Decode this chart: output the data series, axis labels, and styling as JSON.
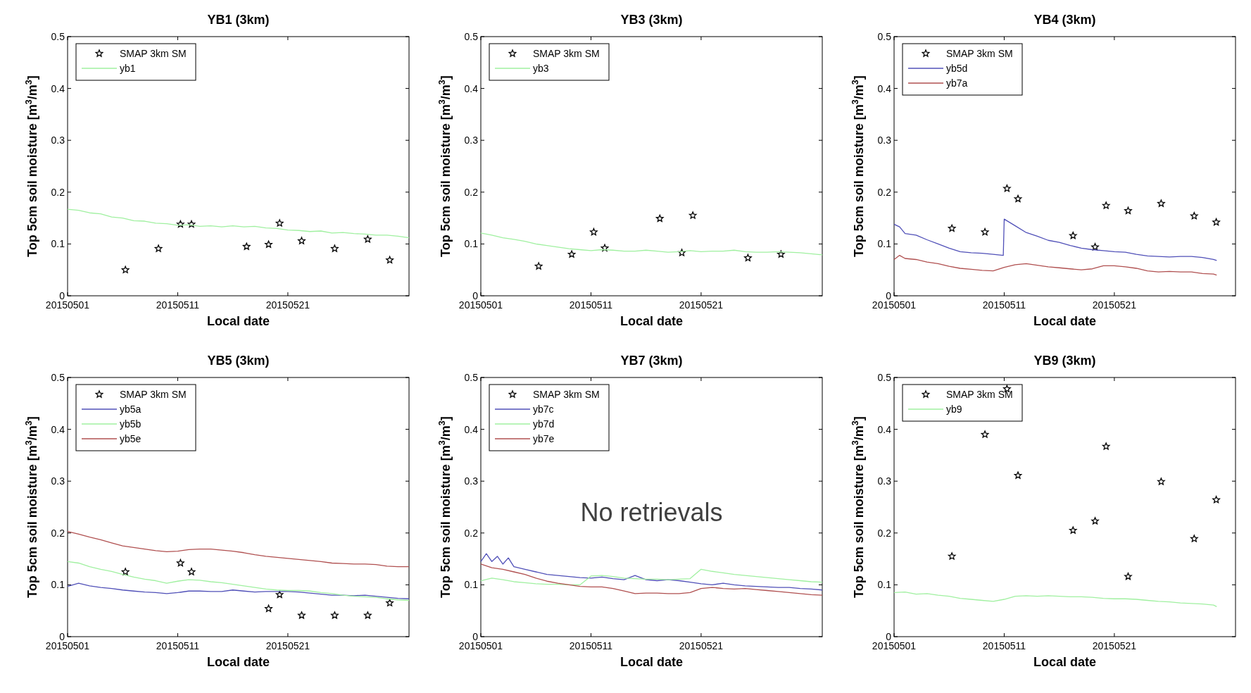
{
  "chart_data": [
    {
      "type": "line",
      "title": "YB1 (3km)",
      "xlabel": "Local date",
      "ylabel": "Top 5cm soil moisture [m$^{3}$/m$^{3}$]",
      "xlim": [
        "2015-05-01",
        "2015-06-01"
      ],
      "xticks": [
        {
          "value": "2015-05-01",
          "label": "20150501"
        },
        {
          "value": "2015-05-11",
          "label": "20150511"
        },
        {
          "value": "2015-05-21",
          "label": "20150521"
        }
      ],
      "ylim": [
        0,
        0.5
      ],
      "yticks": [
        0,
        0.1,
        0.2,
        0.3,
        0.4,
        0.5
      ],
      "legend": "top left",
      "series": [
        {
          "name": "SMAP 3km SM",
          "type": "scatter",
          "marker": "star",
          "color": "#000000",
          "x": [
            "2015-05-06T06:00",
            "2015-05-09T06:00",
            "2015-05-11T06:00",
            "2015-05-12T06:00",
            "2015-05-17T06:00",
            "2015-05-19T06:00",
            "2015-05-20T06:00",
            "2015-05-22T06:00",
            "2015-05-25T06:00",
            "2015-05-28T06:00",
            "2015-05-30T06:00"
          ],
          "values": [
            0.05,
            0.091,
            0.138,
            0.138,
            0.095,
            0.099,
            0.14,
            0.106,
            0.091,
            0.109,
            0.069
          ]
        },
        {
          "name": "yb1",
          "color": "#a0f0a0",
          "x": [
            "2015-05-01",
            "2015-05-02",
            "2015-05-03",
            "2015-05-04",
            "2015-05-05",
            "2015-05-06",
            "2015-05-07",
            "2015-05-08",
            "2015-05-09",
            "2015-05-10",
            "2015-05-11",
            "2015-05-12",
            "2015-05-13",
            "2015-05-14",
            "2015-05-15",
            "2015-05-16",
            "2015-05-17",
            "2015-05-18",
            "2015-05-19",
            "2015-05-20",
            "2015-05-21",
            "2015-05-22",
            "2015-05-23",
            "2015-05-24",
            "2015-05-25",
            "2015-05-26",
            "2015-05-27",
            "2015-05-28",
            "2015-05-29",
            "2015-05-30",
            "2015-05-31",
            "2015-06-01"
          ],
          "values": [
            0.167,
            0.165,
            0.16,
            0.158,
            0.152,
            0.15,
            0.145,
            0.144,
            0.14,
            0.139,
            0.136,
            0.137,
            0.134,
            0.135,
            0.133,
            0.135,
            0.133,
            0.134,
            0.131,
            0.13,
            0.127,
            0.126,
            0.124,
            0.125,
            0.121,
            0.122,
            0.12,
            0.119,
            0.117,
            0.117,
            0.115,
            0.112
          ]
        }
      ]
    },
    {
      "type": "line",
      "title": "YB3 (3km)",
      "xlabel": "Local date",
      "ylabel": "Top 5cm soil moisture [m$^{3}$/m$^{3}$]",
      "xlim": [
        "2015-05-01",
        "2015-06-01"
      ],
      "xticks": [
        {
          "value": "2015-05-01",
          "label": "20150501"
        },
        {
          "value": "2015-05-11",
          "label": "20150511"
        },
        {
          "value": "2015-05-21",
          "label": "20150521"
        }
      ],
      "ylim": [
        0,
        0.5
      ],
      "yticks": [
        0,
        0.1,
        0.2,
        0.3,
        0.4,
        0.5
      ],
      "legend": "top left",
      "series": [
        {
          "name": "SMAP 3km SM",
          "type": "scatter",
          "marker": "star",
          "color": "#000000",
          "x": [
            "2015-05-06T06:00",
            "2015-05-09T06:00",
            "2015-05-11T06:00",
            "2015-05-12T06:00",
            "2015-05-17T06:00",
            "2015-05-19T06:00",
            "2015-05-20T06:00",
            "2015-05-25T06:00",
            "2015-05-28T06:00"
          ],
          "values": [
            0.057,
            0.08,
            0.123,
            0.092,
            0.149,
            0.083,
            0.155,
            0.073,
            0.08
          ]
        },
        {
          "name": "yb3",
          "color": "#a0f0a0",
          "x": [
            "2015-05-01",
            "2015-05-02",
            "2015-05-03",
            "2015-05-04",
            "2015-05-05",
            "2015-05-06",
            "2015-05-07",
            "2015-05-08",
            "2015-05-09",
            "2015-05-10",
            "2015-05-11",
            "2015-05-12",
            "2015-05-13",
            "2015-05-14",
            "2015-05-15",
            "2015-05-16",
            "2015-05-17",
            "2015-05-18",
            "2015-05-19",
            "2015-05-20",
            "2015-05-21",
            "2015-05-22",
            "2015-05-23",
            "2015-05-24",
            "2015-05-25",
            "2015-05-26",
            "2015-05-27",
            "2015-05-28",
            "2015-05-29",
            "2015-05-30",
            "2015-05-31",
            "2015-06-01"
          ],
          "values": [
            0.121,
            0.117,
            0.112,
            0.109,
            0.105,
            0.1,
            0.097,
            0.094,
            0.091,
            0.089,
            0.087,
            0.089,
            0.088,
            0.086,
            0.086,
            0.088,
            0.086,
            0.084,
            0.085,
            0.087,
            0.085,
            0.086,
            0.086,
            0.088,
            0.085,
            0.084,
            0.084,
            0.085,
            0.084,
            0.083,
            0.081,
            0.079
          ]
        }
      ]
    },
    {
      "type": "line",
      "title": "YB4 (3km)",
      "xlabel": "Local date",
      "ylabel": "Top 5cm soil moisture [m$^{3}$/m$^{3}$]",
      "xlim": [
        "2015-05-01",
        "2015-06-01"
      ],
      "xticks": [
        {
          "value": "2015-05-01",
          "label": "20150501"
        },
        {
          "value": "2015-05-11",
          "label": "20150511"
        },
        {
          "value": "2015-05-21",
          "label": "20150521"
        }
      ],
      "ylim": [
        0,
        0.5
      ],
      "yticks": [
        0,
        0.1,
        0.2,
        0.3,
        0.4,
        0.5
      ],
      "legend": "top left",
      "series": [
        {
          "name": "SMAP 3km SM",
          "type": "scatter",
          "marker": "star",
          "color": "#000000",
          "x": [
            "2015-05-06T06:00",
            "2015-05-09T06:00",
            "2015-05-11T06:00",
            "2015-05-12T06:00",
            "2015-05-17T06:00",
            "2015-05-19T06:00",
            "2015-05-20T06:00",
            "2015-05-22T06:00",
            "2015-05-25T06:00",
            "2015-05-28T06:00",
            "2015-05-30T06:00"
          ],
          "values": [
            0.13,
            0.123,
            0.207,
            0.187,
            0.116,
            0.094,
            0.174,
            0.164,
            0.178,
            0.154,
            0.142
          ]
        },
        {
          "name": "yb5d",
          "color": "#5050b8",
          "x": [
            "2015-05-01",
            "2015-05-01T12:00",
            "2015-05-02",
            "2015-05-03",
            "2015-05-04",
            "2015-05-05",
            "2015-05-06",
            "2015-05-07",
            "2015-05-08",
            "2015-05-09",
            "2015-05-10",
            "2015-05-10T22:00",
            "2015-05-11",
            "2015-05-12",
            "2015-05-13",
            "2015-05-14",
            "2015-05-15",
            "2015-05-16",
            "2015-05-17",
            "2015-05-18",
            "2015-05-19",
            "2015-05-20",
            "2015-05-21",
            "2015-05-22",
            "2015-05-23",
            "2015-05-24",
            "2015-05-25",
            "2015-05-26",
            "2015-05-27",
            "2015-05-28",
            "2015-05-29",
            "2015-05-30",
            "2015-05-30T07:00"
          ],
          "values": [
            0.138,
            0.133,
            0.12,
            0.117,
            0.108,
            0.1,
            0.092,
            0.085,
            0.083,
            0.082,
            0.08,
            0.078,
            0.148,
            0.135,
            0.122,
            0.115,
            0.107,
            0.103,
            0.097,
            0.092,
            0.089,
            0.087,
            0.085,
            0.084,
            0.08,
            0.077,
            0.076,
            0.075,
            0.076,
            0.076,
            0.074,
            0.07,
            0.068
          ]
        },
        {
          "name": "yb7a",
          "color": "#b05050",
          "x": [
            "2015-05-01",
            "2015-05-01T12:00",
            "2015-05-02",
            "2015-05-03",
            "2015-05-04",
            "2015-05-05",
            "2015-05-06",
            "2015-05-07",
            "2015-05-08",
            "2015-05-09",
            "2015-05-10",
            "2015-05-11",
            "2015-05-12",
            "2015-05-13",
            "2015-05-14",
            "2015-05-15",
            "2015-05-16",
            "2015-05-17",
            "2015-05-18",
            "2015-05-19",
            "2015-05-20",
            "2015-05-21",
            "2015-05-22",
            "2015-05-23",
            "2015-05-24",
            "2015-05-25",
            "2015-05-26",
            "2015-05-27",
            "2015-05-28",
            "2015-05-29",
            "2015-05-30",
            "2015-05-30T07:00"
          ],
          "values": [
            0.07,
            0.078,
            0.072,
            0.07,
            0.065,
            0.062,
            0.057,
            0.053,
            0.051,
            0.049,
            0.048,
            0.055,
            0.06,
            0.062,
            0.059,
            0.056,
            0.054,
            0.052,
            0.05,
            0.052,
            0.058,
            0.058,
            0.056,
            0.053,
            0.048,
            0.046,
            0.047,
            0.046,
            0.046,
            0.043,
            0.042,
            0.04
          ]
        }
      ]
    },
    {
      "type": "line",
      "title": "YB5 (3km)",
      "xlabel": "Local date",
      "ylabel": "Top 5cm soil moisture [m$^{3}$/m$^{3}$]",
      "xlim": [
        "2015-05-01",
        "2015-06-01"
      ],
      "xticks": [
        {
          "value": "2015-05-01",
          "label": "20150501"
        },
        {
          "value": "2015-05-11",
          "label": "20150511"
        },
        {
          "value": "2015-05-21",
          "label": "20150521"
        }
      ],
      "ylim": [
        0,
        0.5
      ],
      "yticks": [
        0,
        0.1,
        0.2,
        0.3,
        0.4,
        0.5
      ],
      "legend": "top left",
      "series": [
        {
          "name": "SMAP 3km SM",
          "type": "scatter",
          "marker": "star",
          "color": "#000000",
          "x": [
            "2015-05-06T06:00",
            "2015-05-11T06:00",
            "2015-05-12T06:00",
            "2015-05-19T06:00",
            "2015-05-20T06:00",
            "2015-05-22T06:00",
            "2015-05-25T06:00",
            "2015-05-28T06:00",
            "2015-05-30T06:00"
          ],
          "values": [
            0.125,
            0.142,
            0.125,
            0.054,
            0.081,
            0.041,
            0.041,
            0.041,
            0.065
          ]
        },
        {
          "name": "yb5a",
          "color": "#5050b8",
          "x": [
            "2015-05-01",
            "2015-05-02",
            "2015-05-03",
            "2015-05-04",
            "2015-05-05",
            "2015-05-06",
            "2015-05-07",
            "2015-05-08",
            "2015-05-09",
            "2015-05-10",
            "2015-05-11",
            "2015-05-12",
            "2015-05-13",
            "2015-05-14",
            "2015-05-15",
            "2015-05-16",
            "2015-05-17",
            "2015-05-18",
            "2015-05-19",
            "2015-05-20",
            "2015-05-21",
            "2015-05-22",
            "2015-05-23",
            "2015-05-24",
            "2015-05-25",
            "2015-05-26",
            "2015-05-27",
            "2015-05-28",
            "2015-05-29",
            "2015-05-30",
            "2015-05-31",
            "2015-06-01"
          ],
          "values": [
            0.097,
            0.103,
            0.098,
            0.095,
            0.093,
            0.09,
            0.088,
            0.086,
            0.085,
            0.083,
            0.085,
            0.088,
            0.088,
            0.087,
            0.087,
            0.09,
            0.088,
            0.086,
            0.087,
            0.087,
            0.087,
            0.086,
            0.084,
            0.082,
            0.08,
            0.08,
            0.079,
            0.08,
            0.078,
            0.076,
            0.074,
            0.073
          ]
        },
        {
          "name": "yb5b",
          "color": "#a0f0a0",
          "x": [
            "2015-05-01",
            "2015-05-02",
            "2015-05-03",
            "2015-05-04",
            "2015-05-05",
            "2015-05-06",
            "2015-05-07",
            "2015-05-08",
            "2015-05-09",
            "2015-05-10",
            "2015-05-11",
            "2015-05-12",
            "2015-05-13",
            "2015-05-14",
            "2015-05-15",
            "2015-05-16",
            "2015-05-17",
            "2015-05-18",
            "2015-05-19",
            "2015-05-20",
            "2015-05-21",
            "2015-05-22",
            "2015-05-23",
            "2015-05-24",
            "2015-05-25",
            "2015-05-26",
            "2015-05-27",
            "2015-05-28",
            "2015-05-29",
            "2015-05-30",
            "2015-05-31",
            "2015-06-01"
          ],
          "values": [
            0.145,
            0.142,
            0.135,
            0.13,
            0.126,
            0.12,
            0.115,
            0.111,
            0.108,
            0.103,
            0.107,
            0.11,
            0.109,
            0.106,
            0.104,
            0.101,
            0.098,
            0.095,
            0.092,
            0.09,
            0.089,
            0.089,
            0.088,
            0.085,
            0.083,
            0.08,
            0.078,
            0.077,
            0.076,
            0.073,
            0.071,
            0.07
          ]
        },
        {
          "name": "yb5e",
          "color": "#b05050",
          "x": [
            "2015-05-01",
            "2015-05-02",
            "2015-05-03",
            "2015-05-04",
            "2015-05-05",
            "2015-05-06",
            "2015-05-07",
            "2015-05-08",
            "2015-05-09",
            "2015-05-10",
            "2015-05-11",
            "2015-05-12",
            "2015-05-13",
            "2015-05-14",
            "2015-05-15",
            "2015-05-16",
            "2015-05-17",
            "2015-05-18",
            "2015-05-19",
            "2015-05-20",
            "2015-05-21",
            "2015-05-22",
            "2015-05-23",
            "2015-05-24",
            "2015-05-25",
            "2015-05-26",
            "2015-05-27",
            "2015-05-28",
            "2015-05-29",
            "2015-05-30",
            "2015-05-31",
            "2015-06-01"
          ],
          "values": [
            0.203,
            0.198,
            0.192,
            0.187,
            0.181,
            0.175,
            0.172,
            0.169,
            0.166,
            0.164,
            0.165,
            0.168,
            0.169,
            0.169,
            0.167,
            0.165,
            0.162,
            0.158,
            0.155,
            0.153,
            0.151,
            0.149,
            0.147,
            0.145,
            0.142,
            0.141,
            0.14,
            0.14,
            0.139,
            0.136,
            0.135,
            0.135
          ]
        }
      ]
    },
    {
      "type": "line",
      "title": "YB7 (3km)",
      "xlabel": "Local date",
      "ylabel": "Top 5cm soil moisture [m$^{3}$/m$^{3}$]",
      "xlim": [
        "2015-05-01",
        "2015-06-01"
      ],
      "xticks": [
        {
          "value": "2015-05-01",
          "label": "20150501"
        },
        {
          "value": "2015-05-11",
          "label": "20150511"
        },
        {
          "value": "2015-05-21",
          "label": "20150521"
        }
      ],
      "ylim": [
        0,
        0.5
      ],
      "yticks": [
        0,
        0.1,
        0.2,
        0.3,
        0.4,
        0.5
      ],
      "legend": "top left",
      "annotations": [
        "No retrievals"
      ],
      "series": [
        {
          "name": "SMAP 3km SM",
          "type": "scatter",
          "marker": "star",
          "color": "#000000"
        },
        {
          "name": "yb7c",
          "color": "#5050b8",
          "x": [
            "2015-05-01",
            "2015-05-01T12:00",
            "2015-05-02",
            "2015-05-02T12:00",
            "2015-05-03",
            "2015-05-03T12:00",
            "2015-05-04",
            "2015-05-05",
            "2015-05-06",
            "2015-05-07",
            "2015-05-08",
            "2015-05-09",
            "2015-05-10",
            "2015-05-11",
            "2015-05-12",
            "2015-05-13",
            "2015-05-14",
            "2015-05-15",
            "2015-05-16",
            "2015-05-17",
            "2015-05-18",
            "2015-05-19",
            "2015-05-20",
            "2015-05-21",
            "2015-05-22",
            "2015-05-23",
            "2015-05-24",
            "2015-05-25",
            "2015-05-26",
            "2015-05-27",
            "2015-05-28",
            "2015-05-29",
            "2015-05-30",
            "2015-05-31",
            "2015-06-01"
          ],
          "values": [
            0.145,
            0.16,
            0.145,
            0.155,
            0.14,
            0.152,
            0.135,
            0.13,
            0.125,
            0.12,
            0.118,
            0.116,
            0.114,
            0.113,
            0.115,
            0.112,
            0.11,
            0.118,
            0.11,
            0.108,
            0.11,
            0.108,
            0.105,
            0.102,
            0.1,
            0.103,
            0.1,
            0.098,
            0.097,
            0.096,
            0.095,
            0.095,
            0.093,
            0.092,
            0.09
          ]
        },
        {
          "name": "yb7d",
          "color": "#a0f0a0",
          "x": [
            "2015-05-01",
            "2015-05-02",
            "2015-05-03",
            "2015-05-04",
            "2015-05-05",
            "2015-05-06",
            "2015-05-07",
            "2015-05-08",
            "2015-05-09",
            "2015-05-10",
            "2015-05-11",
            "2015-05-12",
            "2015-05-13",
            "2015-05-14",
            "2015-05-15",
            "2015-05-16",
            "2015-05-17",
            "2015-05-18",
            "2015-05-19",
            "2015-05-20",
            "2015-05-21",
            "2015-05-22",
            "2015-05-23",
            "2015-05-24",
            "2015-05-25",
            "2015-05-26",
            "2015-05-27",
            "2015-05-28",
            "2015-05-29",
            "2015-05-30",
            "2015-05-31",
            "2015-06-01"
          ],
          "values": [
            0.108,
            0.113,
            0.11,
            0.106,
            0.104,
            0.102,
            0.101,
            0.101,
            0.1,
            0.1,
            0.117,
            0.118,
            0.116,
            0.113,
            0.112,
            0.111,
            0.111,
            0.11,
            0.111,
            0.112,
            0.13,
            0.126,
            0.123,
            0.12,
            0.118,
            0.116,
            0.114,
            0.112,
            0.11,
            0.108,
            0.106,
            0.105
          ]
        },
        {
          "name": "yb7e",
          "color": "#b05050",
          "x": [
            "2015-05-01",
            "2015-05-02",
            "2015-05-03",
            "2015-05-04",
            "2015-05-05",
            "2015-05-06",
            "2015-05-07",
            "2015-05-08",
            "2015-05-09",
            "2015-05-10",
            "2015-05-11",
            "2015-05-12",
            "2015-05-13",
            "2015-05-14",
            "2015-05-15",
            "2015-05-16",
            "2015-05-17",
            "2015-05-18",
            "2015-05-19",
            "2015-05-20",
            "2015-05-21",
            "2015-05-22",
            "2015-05-23",
            "2015-05-24",
            "2015-05-25",
            "2015-05-26",
            "2015-05-27",
            "2015-05-28",
            "2015-05-29",
            "2015-05-30",
            "2015-05-31",
            "2015-06-01"
          ],
          "values": [
            0.14,
            0.133,
            0.13,
            0.125,
            0.12,
            0.113,
            0.107,
            0.103,
            0.1,
            0.097,
            0.096,
            0.096,
            0.093,
            0.088,
            0.083,
            0.084,
            0.084,
            0.083,
            0.083,
            0.085,
            0.093,
            0.095,
            0.093,
            0.092,
            0.093,
            0.091,
            0.089,
            0.087,
            0.085,
            0.083,
            0.081,
            0.08
          ]
        }
      ]
    },
    {
      "type": "line",
      "title": "YB9 (3km)",
      "xlabel": "Local date",
      "ylabel": "Top 5cm soil moisture [m$^{3}$/m$^{3}$]",
      "xlim": [
        "2015-05-01",
        "2015-06-01"
      ],
      "xticks": [
        {
          "value": "2015-05-01",
          "label": "20150501"
        },
        {
          "value": "2015-05-11",
          "label": "20150511"
        },
        {
          "value": "2015-05-21",
          "label": "20150521"
        }
      ],
      "ylim": [
        0,
        0.5
      ],
      "yticks": [
        0,
        0.1,
        0.2,
        0.3,
        0.4,
        0.5
      ],
      "legend": "top left",
      "series": [
        {
          "name": "SMAP 3km SM",
          "type": "scatter",
          "marker": "star",
          "color": "#000000",
          "x": [
            "2015-05-06T06:00",
            "2015-05-09T06:00",
            "2015-05-11T06:00",
            "2015-05-12T06:00",
            "2015-05-17T06:00",
            "2015-05-19T06:00",
            "2015-05-20T06:00",
            "2015-05-22T06:00",
            "2015-05-25T06:00",
            "2015-05-28T06:00",
            "2015-05-30T06:00"
          ],
          "values": [
            0.155,
            0.39,
            0.478,
            0.311,
            0.205,
            0.223,
            0.367,
            0.116,
            0.299,
            0.189,
            0.264
          ]
        },
        {
          "name": "yb9",
          "color": "#a0f0a0",
          "x": [
            "2015-05-01",
            "2015-05-02",
            "2015-05-03",
            "2015-05-04",
            "2015-05-05",
            "2015-05-06",
            "2015-05-07",
            "2015-05-08",
            "2015-05-09",
            "2015-05-10",
            "2015-05-11",
            "2015-05-12",
            "2015-05-13",
            "2015-05-14",
            "2015-05-15",
            "2015-05-16",
            "2015-05-17",
            "2015-05-18",
            "2015-05-19",
            "2015-05-20",
            "2015-05-21",
            "2015-05-22",
            "2015-05-23",
            "2015-05-24",
            "2015-05-25",
            "2015-05-26",
            "2015-05-27",
            "2015-05-28",
            "2015-05-29",
            "2015-05-30",
            "2015-05-30T07:00"
          ],
          "values": [
            0.085,
            0.086,
            0.082,
            0.083,
            0.08,
            0.078,
            0.074,
            0.072,
            0.07,
            0.068,
            0.072,
            0.078,
            0.079,
            0.078,
            0.079,
            0.078,
            0.077,
            0.077,
            0.076,
            0.074,
            0.073,
            0.073,
            0.072,
            0.07,
            0.068,
            0.067,
            0.065,
            0.064,
            0.063,
            0.061,
            0.058
          ]
        }
      ]
    }
  ]
}
